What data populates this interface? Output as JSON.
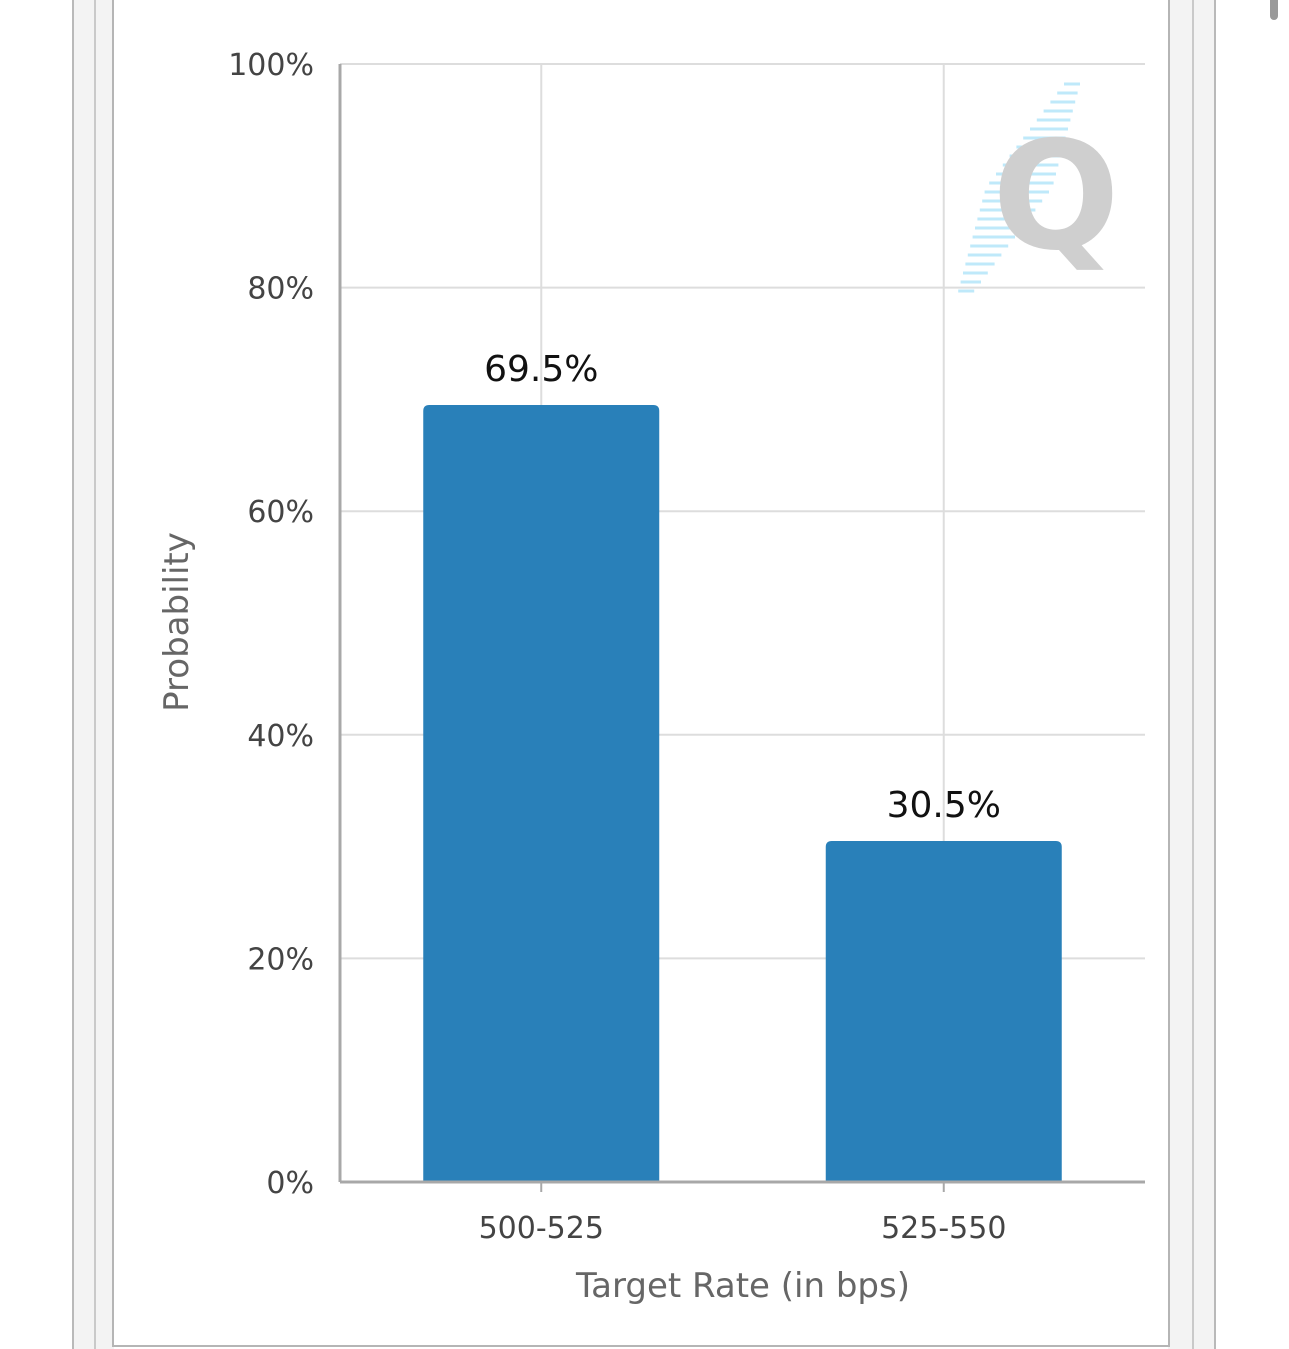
{
  "chart_data": {
    "type": "bar",
    "title": "",
    "categories": [
      "500-525",
      "525-550"
    ],
    "values": [
      69.5,
      30.5
    ],
    "data_labels": [
      "69.5%",
      "30.5%"
    ],
    "xlabel": "Target Rate (in bps)",
    "ylabel": "Probability",
    "ylim": [
      0,
      100
    ],
    "yticks": [
      0,
      20,
      40,
      60,
      80,
      100
    ],
    "ytick_labels": [
      "0%",
      "20%",
      "40%",
      "60%",
      "80%",
      "100%"
    ],
    "grid": true,
    "legend": "none",
    "bar_color": "#2980b9"
  },
  "colors": {
    "grid": "#dddddd",
    "axis": "#a8a8a8",
    "watermark": "#cfcfcf",
    "watermark_stripes": "#bfe9fa"
  },
  "watermark": {
    "icon": "q-logo-icon",
    "letter": "Q"
  }
}
